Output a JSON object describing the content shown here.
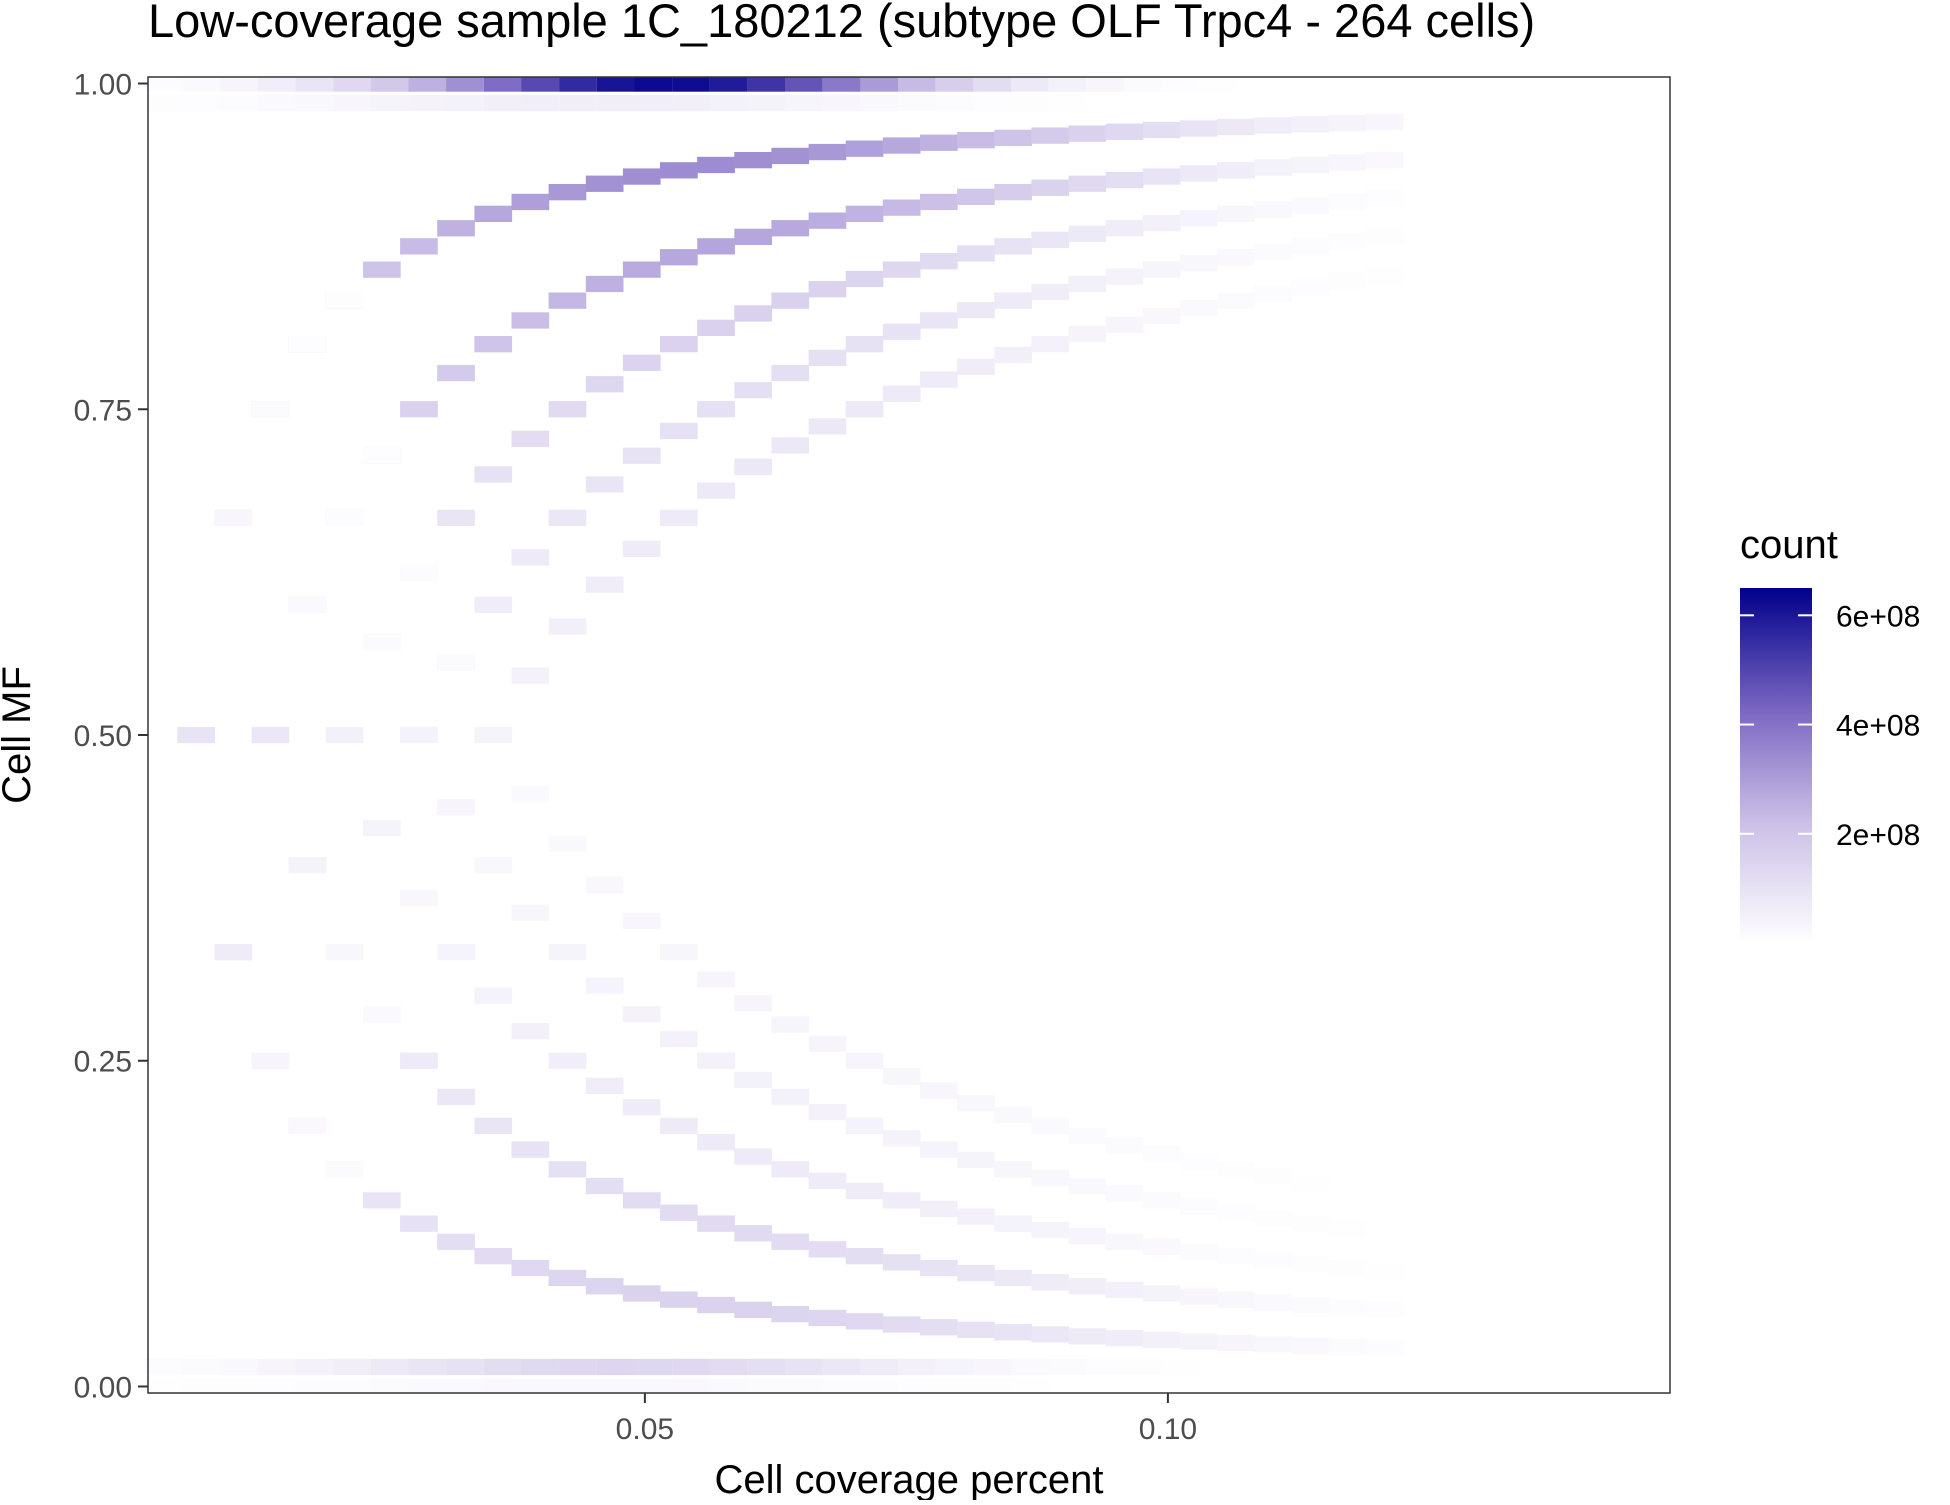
{
  "chart_data": {
    "type": "heatmap",
    "title": "Low-coverage sample 1C_180212 (subtype OLF Trpc4 - 264 cells)",
    "xlabel": "Cell coverage percent",
    "ylabel": "Cell MF",
    "xlim": [
      0.0025,
      0.148
    ],
    "ylim": [
      -0.005,
      1.005
    ],
    "x_ticks": [
      {
        "value": 0.05,
        "label": "0.05"
      },
      {
        "value": 0.1,
        "label": "0.10"
      }
    ],
    "y_ticks": [
      {
        "value": 0.0,
        "label": "0.00"
      },
      {
        "value": 0.25,
        "label": "0.25"
      },
      {
        "value": 0.5,
        "label": "0.50"
      },
      {
        "value": 0.75,
        "label": "0.75"
      },
      {
        "value": 1.0,
        "label": "1.00"
      }
    ],
    "grid": false,
    "legend": {
      "title": "count",
      "placement": "right",
      "min": 0,
      "max": 650000000,
      "ticks": [
        {
          "value": 200000000,
          "label": "2e+08"
        },
        {
          "value": 400000000,
          "label": "4e+08"
        },
        {
          "value": 600000000,
          "label": "6e+08"
        }
      ],
      "low_color": "#ffffff",
      "high_color": "#00008b"
    },
    "x_bin_width": 0.0036,
    "y_bin_width": 0.0125,
    "bands": [
      {
        "mf": 1.0,
        "x_center": 0.052,
        "x_spread": 0.017,
        "peak": 630000000
      },
      {
        "mf": 0.985,
        "x_center": 0.045,
        "x_spread": 0.02,
        "peak": 60000000
      },
      {
        "mf": 0.015,
        "x_center": 0.048,
        "x_spread": 0.02,
        "peak": 140000000
      },
      {
        "mf": 0.0,
        "x_center": 0.045,
        "x_spread": 0.022,
        "peak": 25000000
      }
    ],
    "arcs": [
      {
        "k": 1,
        "peak": 340000000,
        "peak_x": 0.055,
        "spread": 0.03
      },
      {
        "k": 2,
        "peak": 280000000,
        "peak_x": 0.058,
        "spread": 0.028
      },
      {
        "k": 3,
        "peak": 160000000,
        "peak_x": 0.06,
        "spread": 0.026
      },
      {
        "k": 4,
        "peak": 110000000,
        "peak_x": 0.062,
        "spread": 0.025
      },
      {
        "k": 5,
        "peak": 80000000,
        "peak_x": 0.064,
        "spread": 0.024
      }
    ],
    "arc_coverage_unit": 0.00355
  }
}
